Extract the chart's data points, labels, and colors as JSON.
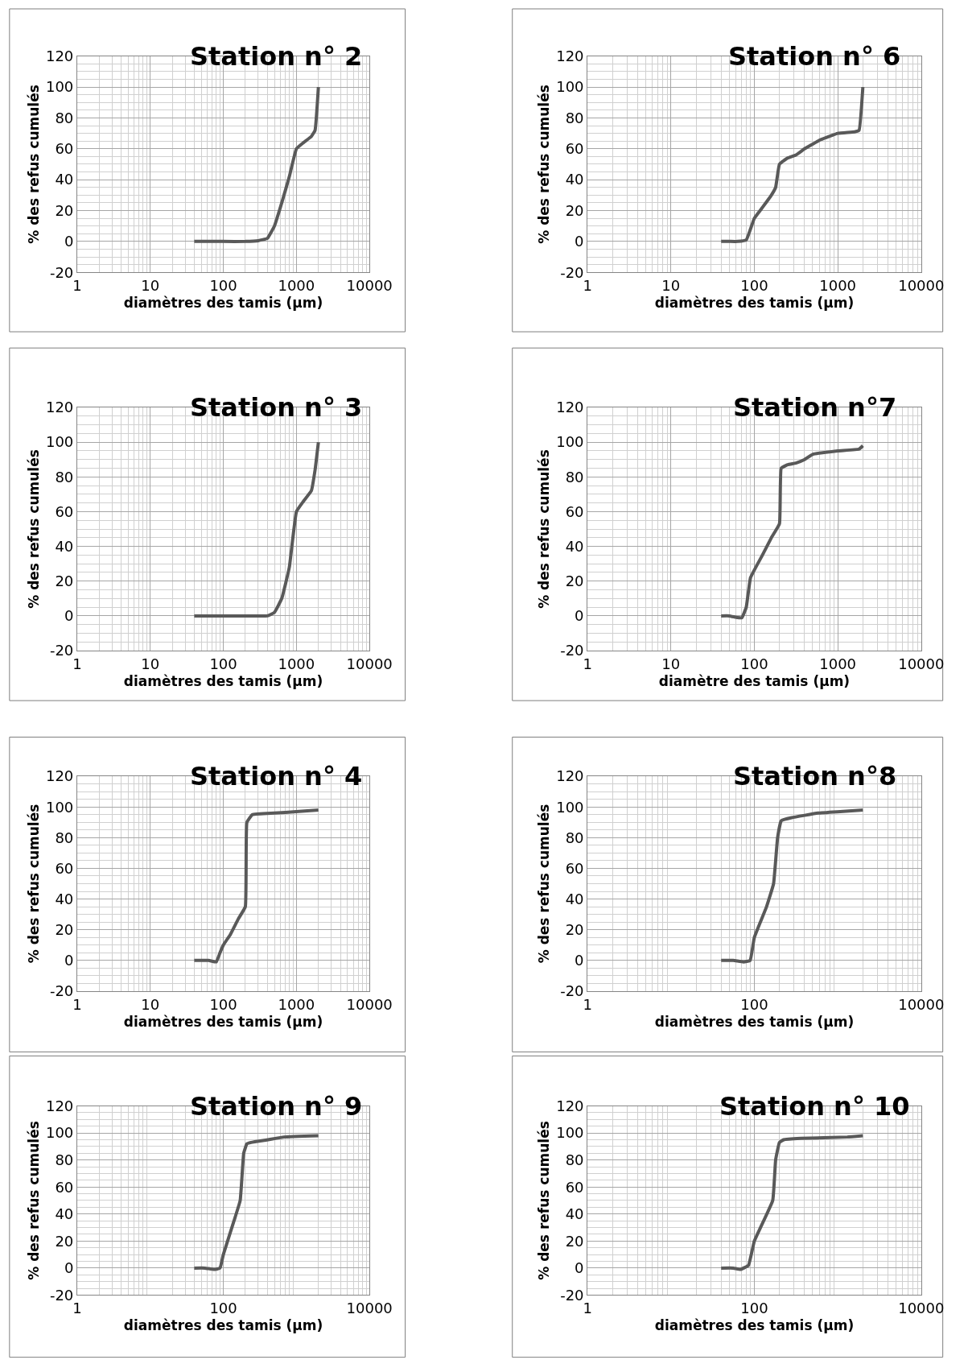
{
  "chart_data": [
    {
      "type": "line",
      "title": "Station n° 2",
      "xlabel": "diamètres des tamis (µm)",
      "ylabel": "% des refus cumulés",
      "color": "#595959",
      "log": "x",
      "grid": true,
      "xlim": [
        1,
        10000
      ],
      "xticks": [
        1,
        10,
        100,
        1000,
        10000
      ],
      "ylim": [
        -20,
        120
      ],
      "yticks": [
        -20,
        0,
        20,
        40,
        60,
        80,
        100,
        120
      ],
      "x": [
        40,
        100,
        200,
        300,
        400,
        500,
        630,
        800,
        1000,
        1250,
        1600,
        1800,
        2000
      ],
      "values": [
        0,
        0,
        0,
        0.5,
        2,
        10,
        25,
        42,
        60,
        64,
        68,
        72,
        100
      ]
    },
    {
      "type": "line",
      "title": "Station n° 6",
      "xlabel": "diamètres des tamis (µm)",
      "ylabel": "% des refus cumulés",
      "color": "#595959",
      "log": "x",
      "grid": true,
      "xlim": [
        1,
        10000
      ],
      "xticks": [
        1,
        10,
        100,
        1000,
        10000
      ],
      "ylim": [
        -20,
        120
      ],
      "yticks": [
        -20,
        0,
        20,
        40,
        60,
        80,
        100,
        120
      ],
      "x": [
        40,
        50,
        63,
        80,
        100,
        125,
        160,
        180,
        200,
        250,
        315,
        400,
        500,
        630,
        1000,
        1600,
        1800,
        2000
      ],
      "values": [
        0,
        0,
        0,
        1,
        15,
        22,
        30,
        35,
        50,
        54,
        56,
        60,
        63,
        66,
        70,
        71,
        72,
        100
      ]
    },
    {
      "type": "line",
      "title": "Station n° 3",
      "xlabel": "diamètres des tamis (µm)",
      "ylabel": "% des refus cumulés",
      "color": "#595959",
      "log": "x",
      "grid": true,
      "xlim": [
        1,
        10000
      ],
      "xticks": [
        1,
        10,
        100,
        1000,
        10000
      ],
      "ylim": [
        -20,
        120
      ],
      "yticks": [
        -20,
        0,
        20,
        40,
        60,
        80,
        100,
        120
      ],
      "x": [
        40,
        100,
        200,
        400,
        500,
        630,
        800,
        1000,
        1250,
        1600,
        1800,
        2000
      ],
      "values": [
        0,
        0,
        0,
        0,
        2,
        10,
        28,
        60,
        66,
        72,
        84,
        100
      ]
    },
    {
      "type": "line",
      "title": "Station n°7",
      "xlabel": "diamètre des tamis (µm)",
      "ylabel": "% des refus cumulés",
      "color": "#595959",
      "log": "x",
      "grid": true,
      "xlim": [
        1,
        10000
      ],
      "xticks": [
        1,
        10,
        100,
        1000,
        10000
      ],
      "ylim": [
        -20,
        120
      ],
      "yticks": [
        -20,
        0,
        20,
        40,
        60,
        80,
        100,
        120
      ],
      "x": [
        40,
        50,
        63,
        71,
        80,
        90,
        125,
        160,
        200,
        210,
        250,
        315,
        400,
        500,
        1000,
        1800,
        2000
      ],
      "values": [
        0,
        0,
        -1,
        -1,
        5,
        22,
        35,
        45,
        53,
        85,
        87,
        88,
        90,
        93,
        95,
        96,
        98
      ]
    },
    {
      "type": "line",
      "title": "Station n° 4",
      "xlabel": "diamètres des tamis (µm)",
      "ylabel": "% des refus cumulés",
      "color": "#595959",
      "log": "x",
      "grid": true,
      "xlim": [
        1,
        10000
      ],
      "xticks": [
        1,
        10,
        100,
        1000,
        10000
      ],
      "ylim": [
        -20,
        120
      ],
      "yticks": [
        -20,
        0,
        20,
        40,
        60,
        80,
        100,
        120
      ],
      "x": [
        40,
        63,
        80,
        90,
        100,
        125,
        160,
        200,
        210,
        250,
        500,
        1000,
        2000
      ],
      "values": [
        0,
        0,
        -1,
        5,
        10,
        17,
        27,
        35,
        90,
        95,
        96,
        97,
        98
      ]
    },
    {
      "type": "line",
      "title": "Station n°8",
      "xlabel": "diamètres des tamis (µm)",
      "ylabel": "% des refus cumulés",
      "color": "#595959",
      "log": "x",
      "grid": true,
      "xlim": [
        1,
        10000
      ],
      "xticks": [
        1,
        100,
        10000
      ],
      "ylim": [
        -20,
        120
      ],
      "yticks": [
        -20,
        0,
        20,
        40,
        60,
        80,
        100,
        120
      ],
      "x": [
        40,
        56,
        74,
        89,
        100,
        140,
        170,
        190,
        210,
        280,
        580,
        1070,
        2000
      ],
      "values": [
        0,
        0,
        -1,
        0,
        15,
        35,
        50,
        80,
        91,
        93,
        96,
        97,
        98
      ]
    },
    {
      "type": "line",
      "title": "Station n° 9",
      "xlabel": "diamètres des tamis (µm)",
      "ylabel": "% des refus cumulés",
      "color": "#595959",
      "log": "x",
      "grid": true,
      "xlim": [
        1,
        10000
      ],
      "xticks": [
        1,
        100,
        10000
      ],
      "ylim": [
        -20,
        120
      ],
      "yticks": [
        -20,
        0,
        20,
        40,
        60,
        80,
        100,
        120
      ],
      "x": [
        40,
        56,
        75,
        90,
        100,
        140,
        170,
        190,
        210,
        240,
        410,
        680,
        2000
      ],
      "values": [
        0,
        0,
        -1,
        0,
        10,
        35,
        50,
        85,
        92,
        93,
        95,
        97,
        98
      ]
    },
    {
      "type": "line",
      "title": "Station n° 10",
      "xlabel": "diamètres des tamis (µm)",
      "ylabel": "% des refus cumulés",
      "color": "#595959",
      "log": "x",
      "grid": true,
      "xlim": [
        1,
        10000
      ],
      "xticks": [
        1,
        100,
        10000
      ],
      "ylim": [
        -20,
        120
      ],
      "yticks": [
        -20,
        0,
        20,
        40,
        60,
        80,
        100,
        120
      ],
      "x": [
        40,
        56,
        68,
        85,
        100,
        166,
        180,
        200,
        225,
        360,
        1300,
        2000
      ],
      "values": [
        0,
        0,
        -1,
        2,
        20,
        50,
        80,
        93,
        95,
        96,
        97,
        98
      ]
    }
  ]
}
